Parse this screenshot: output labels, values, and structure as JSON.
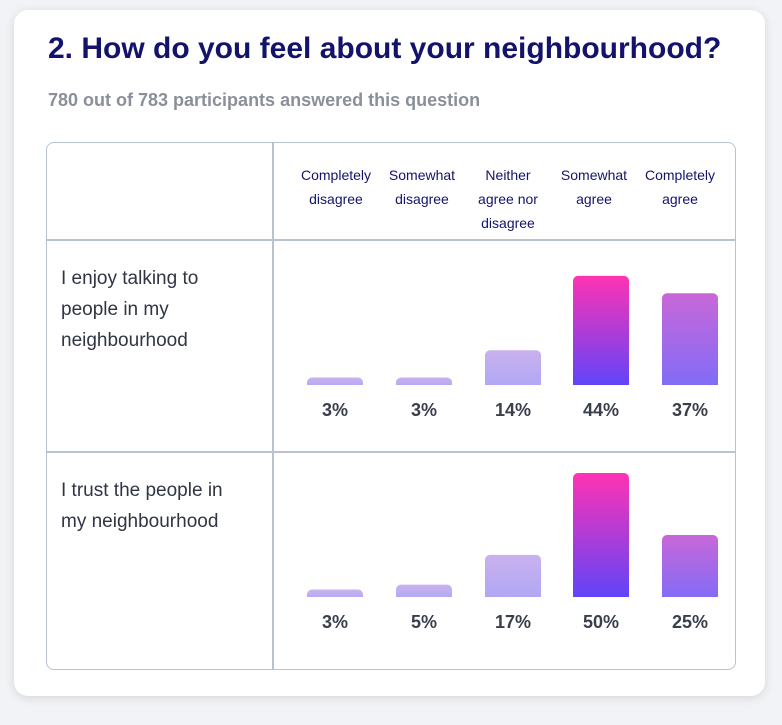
{
  "title": "2. How do you feel about your neighbourhood?",
  "subtitle": "780 out of 783 participants answered this question",
  "chart_data": {
    "type": "bar",
    "categories": [
      "Completely disagree",
      "Somewhat disagree",
      "Neither agree nor disagree",
      "Somewhat agree",
      "Completely agree"
    ],
    "category_lines": [
      [
        "Completely",
        "disagree"
      ],
      [
        "Somewhat",
        "disagree"
      ],
      [
        "Neither",
        "agree nor",
        "disagree"
      ],
      [
        "Somewhat",
        "agree"
      ],
      [
        "Completely",
        "agree"
      ]
    ],
    "rows": [
      {
        "label": "I enjoy talking to people in my neighbourhood",
        "label_lines": [
          "I enjoy talking to",
          "people in my",
          "neighbourhood"
        ],
        "values": [
          3,
          3,
          14,
          44,
          37
        ],
        "value_labels": [
          "3%",
          "3%",
          "14%",
          "44%",
          "37%"
        ]
      },
      {
        "label": "I trust the people in my neighbourhood",
        "label_lines": [
          "I trust the people in",
          "my neighbourhood"
        ],
        "values": [
          3,
          5,
          17,
          50,
          25
        ],
        "value_labels": [
          "3%",
          "5%",
          "17%",
          "50%",
          "25%"
        ]
      }
    ],
    "unit": "%",
    "ylim": [
      0,
      50
    ],
    "grid": false,
    "colors": {
      "light_top": "#c9b2ee",
      "light_bottom": "#aea6f5",
      "dark_top": "#ff33b3",
      "dark_bottom": "#5b45fb",
      "mid_top": "#c867d8",
      "mid_bottom": "#7f6cf8"
    }
  }
}
